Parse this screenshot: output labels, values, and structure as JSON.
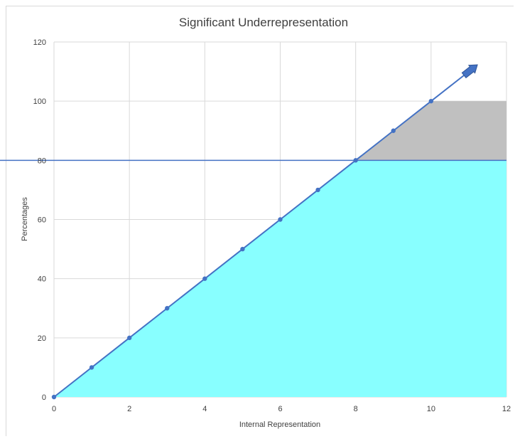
{
  "chart_data": {
    "type": "line",
    "title": "Significant Underrepresentation",
    "xlabel": "Internal Representation",
    "ylabel": "Percentages",
    "xlim": [
      0,
      12
    ],
    "ylim": [
      0,
      120
    ],
    "x_ticks": [
      "0",
      "2",
      "4",
      "6",
      "8",
      "10",
      "12"
    ],
    "y_ticks": [
      "0",
      "20",
      "40",
      "60",
      "80",
      "100",
      "120"
    ],
    "grid": true,
    "legend": "none",
    "series": [
      {
        "x": [
          0,
          1,
          2,
          3,
          4,
          5,
          6,
          7,
          8,
          9,
          10
        ],
        "values": [
          0,
          10,
          20,
          30,
          40,
          50,
          60,
          70,
          80,
          90,
          100
        ],
        "color": "#4472c4"
      }
    ],
    "reference_line": {
      "y": 80,
      "color": "#4472c4"
    },
    "arrow_to": {
      "x": 11.2,
      "y": 112
    },
    "shaded_regions": [
      {
        "name": "below-line",
        "color": "#88ffff",
        "polygon": [
          [
            0,
            0
          ],
          [
            8,
            80
          ],
          [
            12,
            80
          ],
          [
            12,
            0
          ]
        ]
      },
      {
        "name": "above-80",
        "color": "#c0c0c0",
        "polygon": [
          [
            8,
            80
          ],
          [
            10,
            100
          ],
          [
            12,
            100
          ],
          [
            12,
            80
          ]
        ]
      }
    ]
  }
}
